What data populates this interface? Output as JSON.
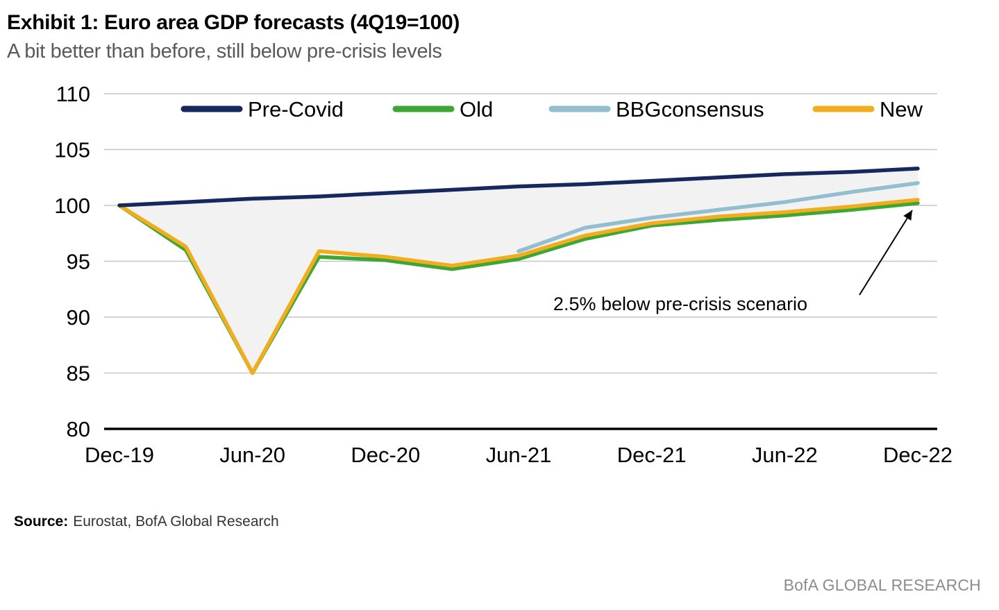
{
  "page": {
    "title": "Exhibit 1: Euro area GDP forecasts (4Q19=100)",
    "subtitle": "A bit better than before, still below pre-crisis levels",
    "source_label": "Source:",
    "source_text": "Eurostat, BofA Global Research",
    "footer": "BofA GLOBAL RESEARCH"
  },
  "chart_data": {
    "type": "line",
    "title": "Euro area GDP forecasts (4Q19=100)",
    "x_labels_all": [
      "Dec-19",
      "Mar-20",
      "Jun-20",
      "Sep-20",
      "Dec-20",
      "Mar-21",
      "Jun-21",
      "Sep-21",
      "Dec-21",
      "Mar-22",
      "Jun-22",
      "Sep-22",
      "Dec-22"
    ],
    "x_tick_labels": [
      "Dec-19",
      "Jun-20",
      "Dec-20",
      "Jun-21",
      "Dec-21",
      "Jun-22",
      "Dec-22"
    ],
    "x_tick_positions": [
      0,
      2,
      4,
      6,
      8,
      10,
      12
    ],
    "ylim": [
      80,
      110
    ],
    "y_ticks": [
      80,
      85,
      90,
      95,
      100,
      105,
      110
    ],
    "grid": "horizontal",
    "legend_position": "top",
    "gap_fill_color": "#f2f2f2",
    "gridline_color": "#c6c6c6",
    "axis_color": "#000000",
    "series": [
      {
        "name": "Pre-Covid",
        "color": "#16295f",
        "values": [
          100,
          100.3,
          100.6,
          100.8,
          101.1,
          101.4,
          101.7,
          101.9,
          102.2,
          102.5,
          102.8,
          103.0,
          103.3
        ]
      },
      {
        "name": "Old",
        "color": "#3fa535",
        "values": [
          100,
          96.0,
          85.0,
          95.4,
          95.1,
          94.3,
          95.2,
          97.0,
          98.2,
          98.7,
          99.1,
          99.6,
          100.2
        ]
      },
      {
        "name": "BBGconsensus",
        "color": "#92becf",
        "values": [
          null,
          null,
          null,
          null,
          null,
          null,
          95.9,
          98.0,
          98.9,
          99.6,
          100.3,
          101.2,
          102.0
        ]
      },
      {
        "name": "New",
        "color": "#f0ad1e",
        "values": [
          100,
          96.3,
          85.0,
          95.9,
          95.4,
          94.6,
          95.5,
          97.3,
          98.4,
          99.0,
          99.4,
          99.9,
          100.5
        ]
      }
    ],
    "annotation": "2.5% below pre-crisis scenario"
  }
}
